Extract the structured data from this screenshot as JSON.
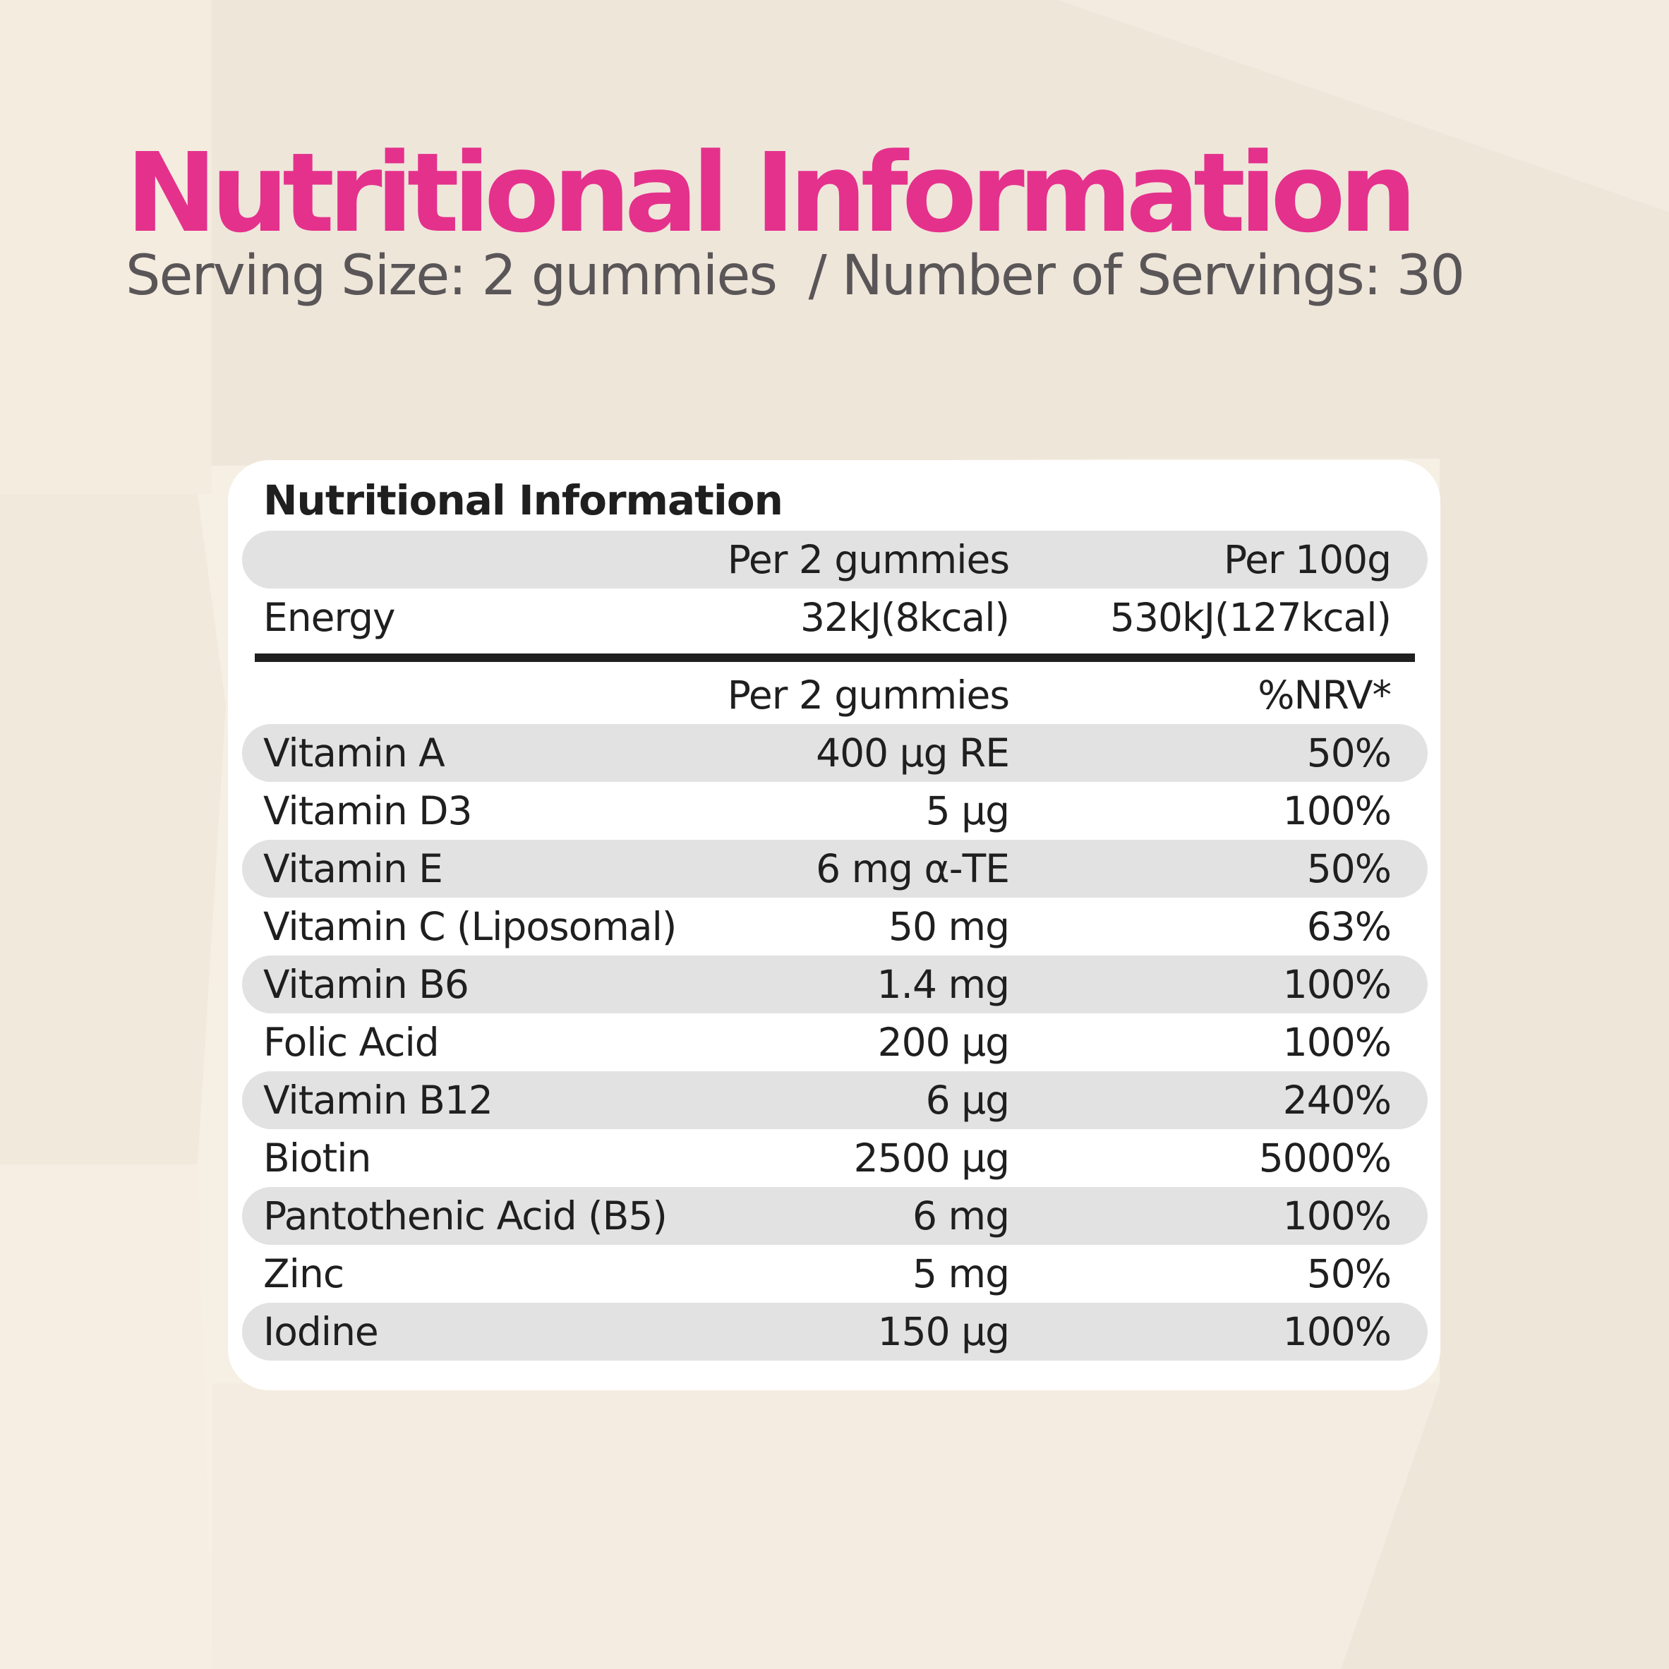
{
  "title": "Nutritional Information",
  "subtitle": "Serving Size: 2 gummies  / Number of Servings: 30",
  "colors": {
    "title": "#e4318c",
    "subtitle": "#5a5658",
    "background": "#f6efe4",
    "row_shade": "#e2e2e2"
  },
  "panel": {
    "title": "Nutritional Information",
    "energy_header": {
      "col1": "Per 2 gummies",
      "col2": "Per 100g"
    },
    "energy": {
      "name": "Energy",
      "col1": "32kJ(8kcal)",
      "col2": "530kJ(127kcal)"
    },
    "nutrient_header": {
      "col1": "Per 2 gummies",
      "col2": "%NRV*"
    },
    "rows": [
      {
        "name": "Vitamin A",
        "amount": "400 µg RE",
        "nrv": "50%"
      },
      {
        "name": "Vitamin D3",
        "amount": "5 µg",
        "nrv": "100%"
      },
      {
        "name": "Vitamin E",
        "amount": "6 mg α-TE",
        "nrv": "50%"
      },
      {
        "name": "Vitamin C (Liposomal)",
        "amount": "50 mg",
        "nrv": "63%"
      },
      {
        "name": "Vitamin B6",
        "amount": "1.4 mg",
        "nrv": "100%"
      },
      {
        "name": "Folic Acid",
        "amount": "200 µg",
        "nrv": "100%"
      },
      {
        "name": "Vitamin B12",
        "amount": "6 µg",
        "nrv": "240%"
      },
      {
        "name": "Biotin",
        "amount": "2500 µg",
        "nrv": "5000%"
      },
      {
        "name": "Pantothenic Acid (B5)",
        "amount": "6 mg",
        "nrv": "100%"
      },
      {
        "name": "Zinc",
        "amount": "5 mg",
        "nrv": "50%"
      },
      {
        "name": "Iodine",
        "amount": "150 µg",
        "nrv": "100%"
      }
    ]
  }
}
